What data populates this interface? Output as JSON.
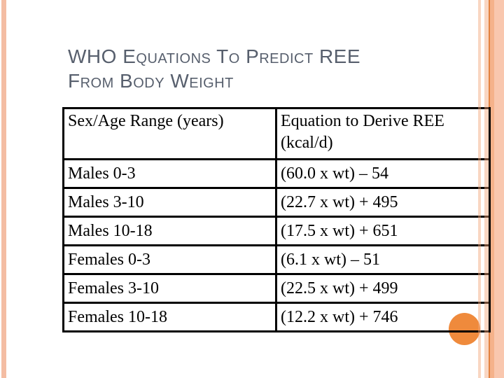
{
  "title": {
    "lines": [
      "WHO Equations To Predict REE",
      "From Body Weight"
    ]
  },
  "table": {
    "headers": [
      "Sex/Age Range (years)",
      "Equation to Derive REE (kcal/d)"
    ],
    "rows": [
      {
        "sex_age": "Males 0-3",
        "equation": "(60.0 x wt) – 54"
      },
      {
        "sex_age": "Males 3-10",
        "equation": "(22.7 x wt) + 495"
      },
      {
        "sex_age": "Males 10-18",
        "equation": "(17.5 x wt) + 651"
      },
      {
        "sex_age": "Females 0-3",
        "equation": "(6.1 x wt) – 51"
      },
      {
        "sex_age": "Females 3-10",
        "equation": "(22.5 x wt) + 499"
      },
      {
        "sex_age": "Females 10-18",
        "equation": "(12.2 x wt) + 746"
      }
    ]
  },
  "decorations": {
    "title_color": "#575f6d",
    "accent_circle_color": "#ef8a3c",
    "stripe_color": "#f4bda3",
    "band_dark_line_color": "#e2813f"
  }
}
